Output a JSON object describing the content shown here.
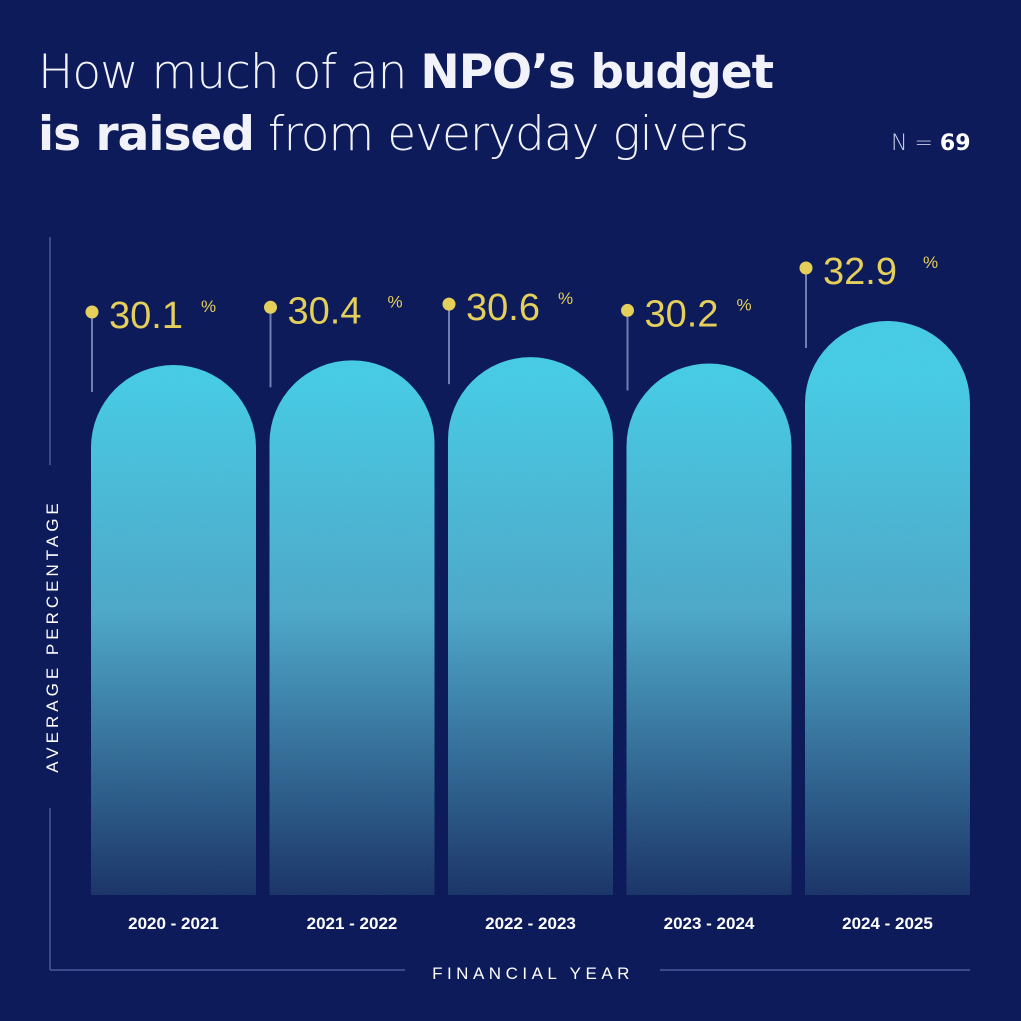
{
  "title": {
    "line1_regular": "How much of an ",
    "line1_bold": "NPO’s budget",
    "line2_bold": "is raised",
    "line2_regular": " from everyday givers"
  },
  "sample": {
    "prefix": "N = ",
    "value": "69"
  },
  "colors": {
    "background": "#0d1b5b",
    "bar_top": "#43cbe6",
    "bar_bottom": "#163066",
    "label": "#e3cf5a",
    "axis_line": "#3b4a8c"
  },
  "chart_data": {
    "type": "bar",
    "title": "How much of an NPO’s budget is raised from everyday givers",
    "xlabel": "FINANCIAL YEAR",
    "ylabel": "AVERAGE PERCENTAGE",
    "categories": [
      "2020 - 2021",
      "2021 - 2022",
      "2022 - 2023",
      "2023 - 2024",
      "2024 - 2025"
    ],
    "values": [
      30.1,
      30.4,
      30.6,
      30.2,
      32.9
    ],
    "value_labels": [
      "30.1",
      "30.4",
      "30.6",
      "30.2",
      "32.9"
    ],
    "unit": "%",
    "n": 69,
    "grid": false,
    "legend": "none"
  }
}
